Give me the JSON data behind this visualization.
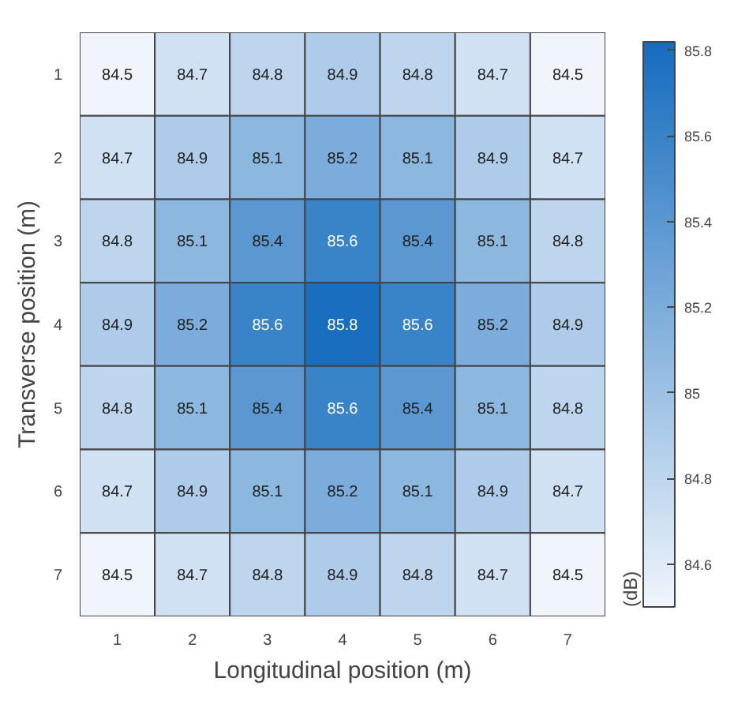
{
  "chart_data": {
    "type": "heatmap",
    "xlabel": "Longitudinal position (m)",
    "ylabel": "Transverse position (m)",
    "clabel": "(dB)",
    "categories": [
      "1",
      "2",
      "3",
      "4",
      "5",
      "6",
      "7"
    ],
    "y_categories": [
      "1",
      "2",
      "3",
      "4",
      "5",
      "6",
      "7"
    ],
    "cells": [
      [
        84.5,
        84.7,
        84.8,
        84.9,
        84.8,
        84.7,
        84.5
      ],
      [
        84.7,
        84.9,
        85.1,
        85.2,
        85.1,
        84.9,
        84.7
      ],
      [
        84.8,
        85.1,
        85.4,
        85.6,
        85.4,
        85.1,
        84.8
      ],
      [
        84.9,
        85.2,
        85.6,
        85.8,
        85.6,
        85.2,
        84.9
      ],
      [
        84.8,
        85.1,
        85.4,
        85.6,
        85.4,
        85.1,
        84.8
      ],
      [
        84.7,
        84.9,
        85.1,
        85.2,
        85.1,
        84.9,
        84.7
      ],
      [
        84.5,
        84.7,
        84.8,
        84.9,
        84.8,
        84.7,
        84.5
      ]
    ],
    "clim": [
      84.5,
      85.82
    ],
    "cticks": [
      84.6,
      84.8,
      85,
      85.2,
      85.4,
      85.6,
      85.8
    ],
    "data_labels": true
  }
}
